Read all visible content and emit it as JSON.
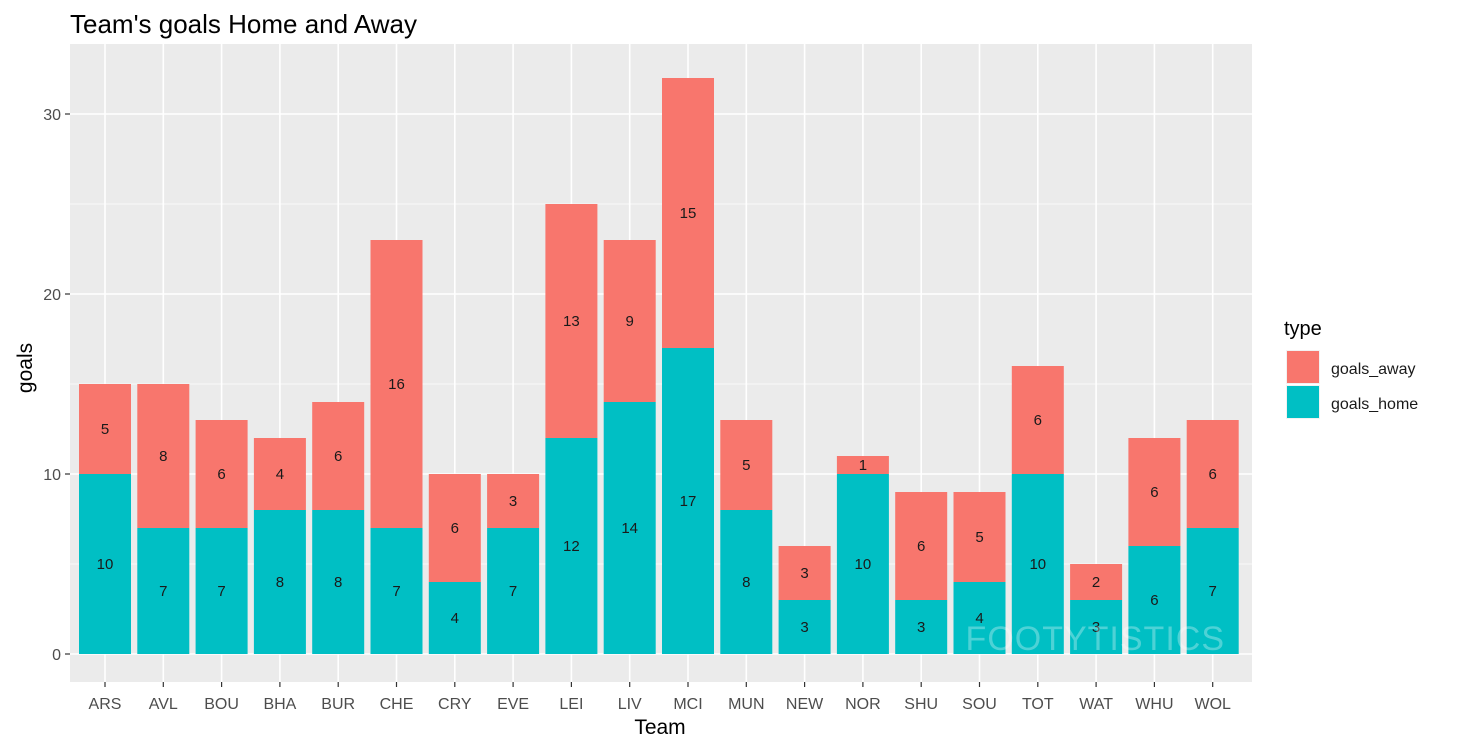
{
  "chart_data": {
    "type": "bar",
    "stacked": true,
    "title": "Team's goals Home and Away",
    "xlabel": "Team",
    "ylabel": "goals",
    "ylim": [
      0,
      32
    ],
    "yticks": [
      0,
      10,
      20,
      30
    ],
    "grid": true,
    "legend": {
      "title": "type",
      "position": "right"
    },
    "categories": [
      "ARS",
      "AVL",
      "BOU",
      "BHA",
      "BUR",
      "CHE",
      "CRY",
      "EVE",
      "LEI",
      "LIV",
      "MCI",
      "MUN",
      "NEW",
      "NOR",
      "SHU",
      "SOU",
      "TOT",
      "WAT",
      "WHU",
      "WOL"
    ],
    "series": [
      {
        "name": "goals_home",
        "color": "#00BFC4",
        "values": [
          10,
          7,
          7,
          8,
          8,
          7,
          4,
          7,
          12,
          14,
          17,
          8,
          3,
          10,
          3,
          4,
          10,
          3,
          6,
          7
        ]
      },
      {
        "name": "goals_away",
        "color": "#F8766D",
        "values": [
          5,
          8,
          6,
          4,
          6,
          16,
          6,
          3,
          13,
          9,
          15,
          5,
          3,
          1,
          6,
          5,
          6,
          2,
          6,
          6
        ]
      }
    ],
    "legend_order": [
      "goals_away",
      "goals_home"
    ]
  },
  "watermark": "FOOTYTISTICS"
}
